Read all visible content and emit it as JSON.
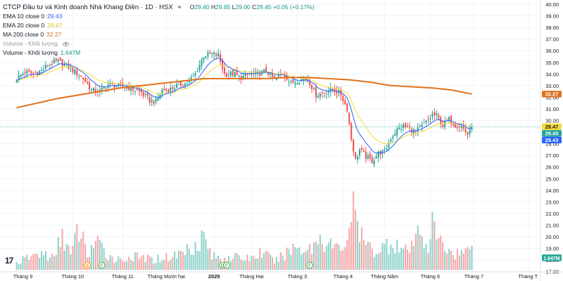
{
  "header": {
    "symbol_title": "CTCP Đầu tư và Kinh doanh Nhà Khang Điền · 1D · HSX",
    "ohlc": {
      "o_label": "O",
      "o": "29.40",
      "h_label": "H",
      "h": "29.65",
      "l_label": "L",
      "l": "29.00",
      "c_label": "C",
      "c": "29.45",
      "change": "+0.05 (+0.17%)"
    }
  },
  "indicators": [
    {
      "label": "EMA 10 close 0",
      "value": "29.43",
      "color": "#2962ff"
    },
    {
      "label": "EMA 20 close 0",
      "value": "29.47",
      "color": "#f7dd3a"
    },
    {
      "label": "MA 200 close 0",
      "value": "32.27",
      "color": "#e0711a"
    },
    {
      "label": "Volume - Khối lượng",
      "value": "",
      "color": "#9598a1"
    },
    {
      "label": "Volume - Khối lượng",
      "value": "1.647M",
      "color": "#089981"
    }
  ],
  "colors": {
    "up": "#26a69a",
    "down": "#ef5350",
    "vol_up": "#8fd3c9",
    "vol_down": "#f5a9aa",
    "ema10": "#2962ff",
    "ema20": "#f7dd3a",
    "ma200": "#e0711a",
    "grid": "#f0f3fa",
    "axis_text": "#131722"
  },
  "chart_data": {
    "type": "candlestick",
    "title": "CTCP Đầu tư và Kinh doanh Nhà Khang Điền · 1D · HSX",
    "ylim": [
      17,
      40
    ],
    "y_ticks": [
      "40.00",
      "39.00",
      "38.00",
      "37.00",
      "36.00",
      "35.00",
      "34.00",
      "33.00",
      "32.00",
      "31.00",
      "30.00",
      "29.00",
      "28.00",
      "27.00",
      "26.00",
      "25.00",
      "24.00",
      "23.00",
      "22.00",
      "21.00",
      "20.00",
      "19.00",
      "18.00",
      "17.00"
    ],
    "x_ticks": [
      "Tháng 9",
      "Tháng 10",
      "Tháng 11",
      "Tháng Mười hai",
      "2025",
      "Tháng Hai",
      "Tháng 3",
      "Tháng 4",
      "Tháng Năm",
      "Tháng 6",
      "Tháng 7",
      "Tháng T"
    ],
    "x_tick_index": [
      3,
      27,
      51,
      72,
      95,
      113,
      135,
      157,
      177,
      199,
      220,
      246
    ],
    "x_range": [
      -8,
      252
    ],
    "close_keypoints": [
      [
        0,
        33.6
      ],
      [
        4,
        34.2
      ],
      [
        8,
        34.0
      ],
      [
        12,
        34.3
      ],
      [
        16,
        34.9
      ],
      [
        20,
        35.1
      ],
      [
        24,
        34.7
      ],
      [
        28,
        34.2
      ],
      [
        32,
        33.6
      ],
      [
        36,
        32.6
      ],
      [
        40,
        32.5
      ],
      [
        44,
        33.1
      ],
      [
        48,
        33.0
      ],
      [
        52,
        32.9
      ],
      [
        56,
        32.7
      ],
      [
        60,
        32.4
      ],
      [
        64,
        31.7
      ],
      [
        67,
        31.6
      ],
      [
        70,
        32.6
      ],
      [
        74,
        32.7
      ],
      [
        78,
        33.1
      ],
      [
        82,
        33.2
      ],
      [
        86,
        34.0
      ],
      [
        90,
        35.6
      ],
      [
        94,
        35.7
      ],
      [
        97,
        35.6
      ],
      [
        100,
        34.0
      ],
      [
        104,
        34.0
      ],
      [
        108,
        33.7
      ],
      [
        112,
        34.0
      ],
      [
        116,
        34.0
      ],
      [
        120,
        34.3
      ],
      [
        124,
        33.5
      ],
      [
        128,
        34.1
      ],
      [
        132,
        33.2
      ],
      [
        136,
        33.5
      ],
      [
        140,
        33.6
      ],
      [
        144,
        32.2
      ],
      [
        148,
        32.4
      ],
      [
        152,
        32.7
      ],
      [
        156,
        32.2
      ],
      [
        159,
        31.0
      ],
      [
        161,
        28.4
      ],
      [
        163,
        26.6
      ],
      [
        165,
        27.5
      ],
      [
        168,
        26.9
      ],
      [
        171,
        26.5
      ],
      [
        174,
        27.2
      ],
      [
        177,
        27.3
      ],
      [
        180,
        28.5
      ],
      [
        183,
        29.2
      ],
      [
        186,
        29.5
      ],
      [
        189,
        29.3
      ],
      [
        192,
        29.0
      ],
      [
        195,
        29.5
      ],
      [
        198,
        30.0
      ],
      [
        200,
        30.5
      ],
      [
        202,
        30.4
      ],
      [
        205,
        29.6
      ],
      [
        208,
        30.1
      ],
      [
        211,
        29.6
      ],
      [
        214,
        29.5
      ],
      [
        217,
        28.8
      ],
      [
        219,
        29.45
      ]
    ],
    "ma200_keypoints": [
      [
        0,
        31.1
      ],
      [
        10,
        31.5
      ],
      [
        20,
        31.9
      ],
      [
        30,
        32.2
      ],
      [
        40,
        32.5
      ],
      [
        50,
        32.8
      ],
      [
        60,
        33.0
      ],
      [
        70,
        33.2
      ],
      [
        80,
        33.4
      ],
      [
        90,
        33.6
      ],
      [
        100,
        33.6
      ],
      [
        110,
        33.6
      ],
      [
        120,
        33.6
      ],
      [
        130,
        33.7
      ],
      [
        140,
        33.7
      ],
      [
        150,
        33.6
      ],
      [
        160,
        33.5
      ],
      [
        170,
        33.3
      ],
      [
        180,
        33.0
      ],
      [
        190,
        32.9
      ],
      [
        200,
        32.8
      ],
      [
        210,
        32.6
      ],
      [
        219,
        32.27
      ]
    ],
    "volume_keypoints": [
      [
        0,
        0.5
      ],
      [
        6,
        0.9
      ],
      [
        12,
        1.2
      ],
      [
        18,
        0.8
      ],
      [
        22,
        2.7
      ],
      [
        26,
        1.0
      ],
      [
        30,
        3.0
      ],
      [
        34,
        1.1
      ],
      [
        38,
        2.0
      ],
      [
        42,
        1.3
      ],
      [
        46,
        0.9
      ],
      [
        50,
        0.7
      ],
      [
        54,
        0.9
      ],
      [
        60,
        0.9
      ],
      [
        66,
        0.7
      ],
      [
        70,
        0.9
      ],
      [
        74,
        0.9
      ],
      [
        80,
        1.3
      ],
      [
        86,
        1.9
      ],
      [
        90,
        2.4
      ],
      [
        94,
        1.0
      ],
      [
        98,
        0.8
      ],
      [
        102,
        1.0
      ],
      [
        108,
        0.8
      ],
      [
        114,
        0.9
      ],
      [
        118,
        1.3
      ],
      [
        124,
        0.6
      ],
      [
        128,
        1.0
      ],
      [
        134,
        1.7
      ],
      [
        138,
        1.5
      ],
      [
        142,
        1.6
      ],
      [
        146,
        2.4
      ],
      [
        150,
        1.9
      ],
      [
        154,
        1.5
      ],
      [
        158,
        1.8
      ],
      [
        160,
        3.4
      ],
      [
        162,
        4.2
      ],
      [
        164,
        3.2
      ],
      [
        166,
        2.2
      ],
      [
        170,
        1.5
      ],
      [
        174,
        1.4
      ],
      [
        178,
        1.8
      ],
      [
        182,
        2.0
      ],
      [
        186,
        1.3
      ],
      [
        190,
        1.5
      ],
      [
        194,
        2.9
      ],
      [
        198,
        1.7
      ],
      [
        200,
        3.1
      ],
      [
        204,
        1.9
      ],
      [
        208,
        1.4
      ],
      [
        212,
        1.2
      ],
      [
        216,
        1.3
      ],
      [
        219,
        1.647
      ]
    ],
    "volume_max": 5.0,
    "last_close": 29.45,
    "price_labels": [
      {
        "value": 32.27,
        "text": "32.27",
        "color": "#e0711a"
      },
      {
        "value": 29.47,
        "text": "29.47",
        "color": "#f7dd3a"
      },
      {
        "value": 29.45,
        "text": "29.45",
        "color": "#26a69a"
      },
      {
        "value": 29.43,
        "text": "29.43",
        "color": "#2962ff"
      }
    ],
    "volume_label": {
      "text": "1.647M",
      "color": "#26a69a"
    },
    "event_markers": [
      {
        "index": 34,
        "letter": "S",
        "color": "#ff9800"
      },
      {
        "index": 41,
        "letter": "F",
        "color": "#4caf50"
      },
      {
        "index": 99,
        "letter": "D",
        "color": "#4caf50"
      },
      {
        "index": 101,
        "letter": "F",
        "color": "#4caf50"
      },
      {
        "index": 141,
        "letter": "F",
        "color": "#4caf50"
      }
    ]
  },
  "footer": {
    "logo_text": "17"
  }
}
